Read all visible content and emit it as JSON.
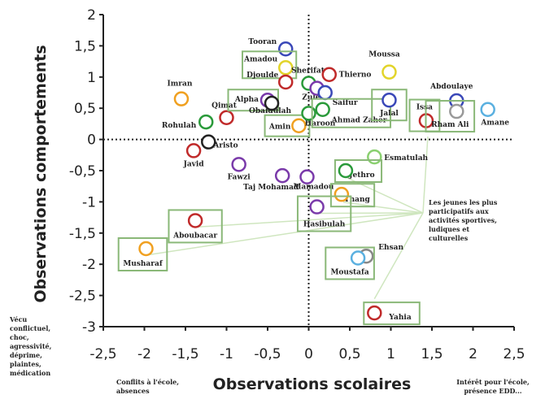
{
  "chart_data": {
    "type": "scatter",
    "title": "",
    "xlabel": "Observations scolaires",
    "ylabel": "Observations comportements",
    "xlim": [
      -2.5,
      2.5
    ],
    "ylim": [
      -3,
      2
    ],
    "xticks": [
      "-2,5",
      "-2",
      "-1,5",
      "-1",
      "-0,5",
      "0",
      "0,5",
      "1",
      "1,5",
      "2",
      "2,5"
    ],
    "yticks": [
      "2",
      "1,5",
      "1",
      "0,5",
      "0",
      "-0,5",
      "-1",
      "-1,5",
      "-2",
      "-2,5",
      "-3"
    ],
    "grid": false,
    "legend": "none",
    "points": [
      {
        "label": "Tooran",
        "x": -0.28,
        "y": 1.45,
        "color": "#3a48b8",
        "boxed": false
      },
      {
        "label": "Amadou",
        "x": -0.28,
        "y": 1.15,
        "color": "#e2d42a",
        "boxed": true
      },
      {
        "label": "Djoulde",
        "x": -0.28,
        "y": 0.92,
        "color": "#c02a2a",
        "boxed": false
      },
      {
        "label": "Sherifat",
        "x": 0.0,
        "y": 0.9,
        "color": "#2a9a3a",
        "boxed": false
      },
      {
        "label": "Zuleha",
        "x": 0.1,
        "y": 0.82,
        "color": "#7a3aaa",
        "boxed": false
      },
      {
        "label": "Thierno",
        "x": 0.25,
        "y": 1.04,
        "color": "#c02a2a",
        "boxed": false
      },
      {
        "label": "Saifur",
        "x": 0.2,
        "y": 0.75,
        "color": "#3a48b8",
        "boxed": false
      },
      {
        "label": "Moussa",
        "x": 0.98,
        "y": 1.08,
        "color": "#e2d42a",
        "boxed": false
      },
      {
        "label": "Imran",
        "x": -1.55,
        "y": 0.65,
        "color": "#f0a020",
        "boxed": false
      },
      {
        "label": "Qimat",
        "x": -1.0,
        "y": 0.35,
        "color": "#c02a2a",
        "boxed": false
      },
      {
        "label": "Rohulah",
        "x": -1.25,
        "y": 0.28,
        "color": "#2a9a3a",
        "boxed": false
      },
      {
        "label": "Alpha",
        "x": -0.5,
        "y": 0.63,
        "color": "#7a3aaa",
        "boxed": true
      },
      {
        "label": "Obaidulah",
        "x": -0.45,
        "y": 0.58,
        "color": "#222222",
        "boxed": false
      },
      {
        "label": "Amin",
        "x": -0.12,
        "y": 0.22,
        "color": "#f0a020",
        "boxed": true
      },
      {
        "label": "Haroon",
        "x": 0.0,
        "y": 0.42,
        "color": "#2a9a3a",
        "boxed": false
      },
      {
        "label": "Ahmad Zaher",
        "x": 0.17,
        "y": 0.48,
        "color": "#2a9a3a",
        "boxed": true
      },
      {
        "label": "Jalal",
        "x": 0.98,
        "y": 0.63,
        "color": "#3a48b8",
        "boxed": true
      },
      {
        "label": "Issa",
        "x": 1.43,
        "y": 0.3,
        "color": "#c02a2a",
        "boxed": true
      },
      {
        "label": "Abdoulaye",
        "x": 1.8,
        "y": 0.62,
        "color": "#3a48b8",
        "boxed": false
      },
      {
        "label": "Rham Ali",
        "x": 1.8,
        "y": 0.45,
        "color": "#999999",
        "boxed": true
      },
      {
        "label": "Amane",
        "x": 2.18,
        "y": 0.48,
        "color": "#5ab0e0",
        "boxed": false
      },
      {
        "label": "Javid",
        "x": -1.4,
        "y": -0.18,
        "color": "#c02a2a",
        "boxed": false
      },
      {
        "label": "Aristo",
        "x": -1.22,
        "y": -0.04,
        "color": "#222222",
        "boxed": false
      },
      {
        "label": "Fawzi",
        "x": -0.85,
        "y": -0.4,
        "color": "#7a3aaa",
        "boxed": false
      },
      {
        "label": "Taj Mohamad",
        "x": -0.32,
        "y": -0.58,
        "color": "#7a3aaa",
        "boxed": false
      },
      {
        "label": "Mamadou",
        "x": -0.02,
        "y": -0.6,
        "color": "#7a3aaa",
        "boxed": false
      },
      {
        "label": "Esmatulah",
        "x": 0.8,
        "y": -0.28,
        "color": "#8ad070",
        "boxed": false
      },
      {
        "label": "Jethro",
        "x": 0.45,
        "y": -0.5,
        "color": "#2a9a3a",
        "boxed": true
      },
      {
        "label": "Thang",
        "x": 0.4,
        "y": -0.88,
        "color": "#f0a020",
        "boxed": true
      },
      {
        "label": "Hasibulah",
        "x": 0.1,
        "y": -1.08,
        "color": "#7a3aaa",
        "boxed": true
      },
      {
        "label": "Aboubacar",
        "x": -1.38,
        "y": -1.3,
        "color": "#c02a2a",
        "boxed": true
      },
      {
        "label": "Musharaf",
        "x": -1.98,
        "y": -1.75,
        "color": "#f0a020",
        "boxed": true
      },
      {
        "label": "Ehsan",
        "x": 0.7,
        "y": -1.87,
        "color": "#888888",
        "boxed": false
      },
      {
        "label": "Moustafa",
        "x": 0.6,
        "y": -1.9,
        "color": "#5ab0e0",
        "boxed": true
      },
      {
        "label": "Yahia",
        "x": 0.8,
        "y": -2.78,
        "color": "#c02a2a",
        "boxed": true
      }
    ],
    "annotations": {
      "callout": "Les jeunes les plus participatifs aux activités sportives, ludiques et culturelles",
      "y_negative_note": "Vécu conflictuel, choc, agressivité, déprime, plaintes, médication",
      "x_negative_note": "Conflits à l'école, absences",
      "x_positive_note": "Intérêt pour l'école, présence EDD..."
    },
    "colors": {
      "box_border": "#8ab878",
      "callout_line": "#cfe6bf",
      "axis": "#222222"
    }
  }
}
